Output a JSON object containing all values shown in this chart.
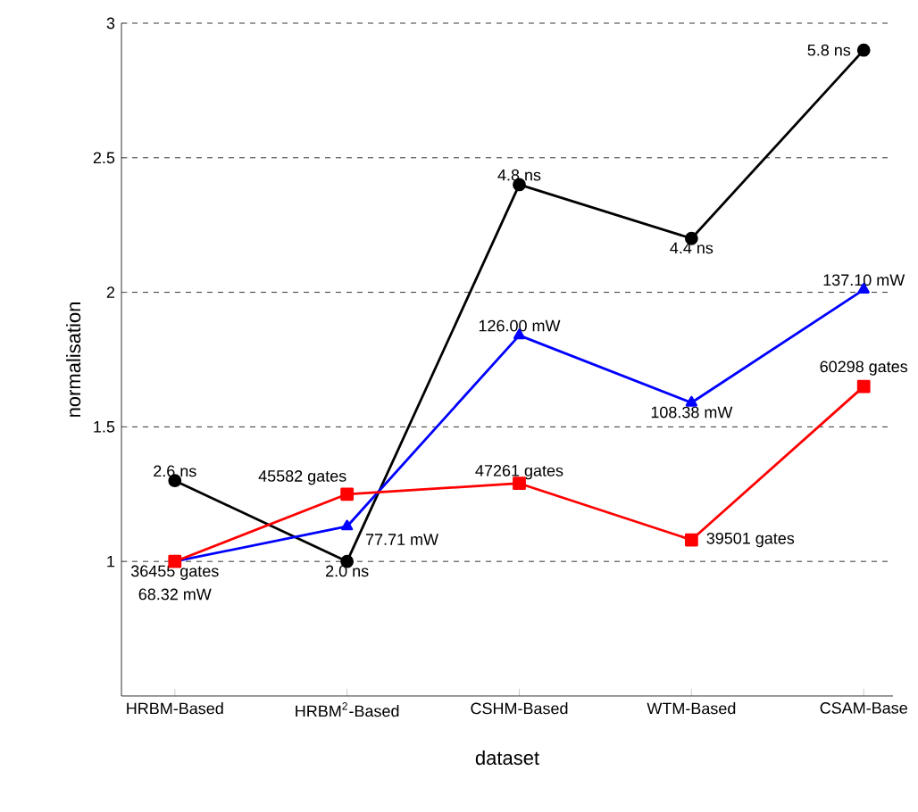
{
  "chart_data": {
    "type": "line",
    "xlabel": "dataset",
    "ylabel": "normalisation",
    "categories": [
      "HRBM-Based",
      "HRBM$^{2}$-Based",
      "CSHM-Based",
      "WTM-Based",
      "CSAM-Base"
    ],
    "series": [
      {
        "color": "#000000",
        "marker": "circle",
        "values": [
          1.3,
          1.0,
          2.4,
          2.2,
          2.9
        ]
      },
      {
        "color": "#0000ff",
        "marker": "triangle",
        "values": [
          1.0,
          1.13,
          1.84,
          1.59,
          2.01
        ]
      },
      {
        "color": "#ff0000",
        "marker": "square",
        "values": [
          1.0,
          1.25,
          1.29,
          1.08,
          1.65
        ]
      }
    ],
    "ylim": [
      0.5,
      3
    ],
    "yticks": [
      1,
      1.5,
      2,
      2.5,
      3
    ],
    "grid": "y",
    "line_style": "solid",
    "annotations": [
      {
        "text": "2.6 ns",
        "x": "HRBM-Based",
        "y": 1.3
      },
      {
        "text": "2.0 ns",
        "x": "HRBM$^{2}$-Based",
        "y": 1.0
      },
      {
        "text": "4.8 ns",
        "x": "CSHM-Based",
        "y": 2.4
      },
      {
        "text": "4.4 ns",
        "x": "WTM-Based",
        "y": 2.2
      },
      {
        "text": "5.8 ns",
        "x": "CSAM-Base",
        "y": 2.9
      },
      {
        "text": "68.32 mW",
        "x": "HRBM-Based",
        "y": 1.0
      },
      {
        "text": "77.71 mW",
        "x": "HRBM$^{2}$-Based",
        "y": 1.13
      },
      {
        "text": "126.00 mW",
        "x": "CSHM-Based",
        "y": 1.84
      },
      {
        "text": "108.38 mW",
        "x": "WTM-Based",
        "y": 1.59
      },
      {
        "text": "137.10 mW",
        "x": "CSAM-Base",
        "y": 2.01
      },
      {
        "text": "36455 gates",
        "x": "HRBM-Based",
        "y": 1.0
      },
      {
        "text": "45582 gates",
        "x": "HRBM$^{2}$-Based",
        "y": 1.25
      },
      {
        "text": "47261 gates",
        "x": "CSHM-Based",
        "y": 1.29
      },
      {
        "text": "39501 gates",
        "x": "WTM-Based",
        "y": 1.08
      },
      {
        "text": "60298 gates",
        "x": "CSAM-Base",
        "y": 1.65
      }
    ]
  }
}
